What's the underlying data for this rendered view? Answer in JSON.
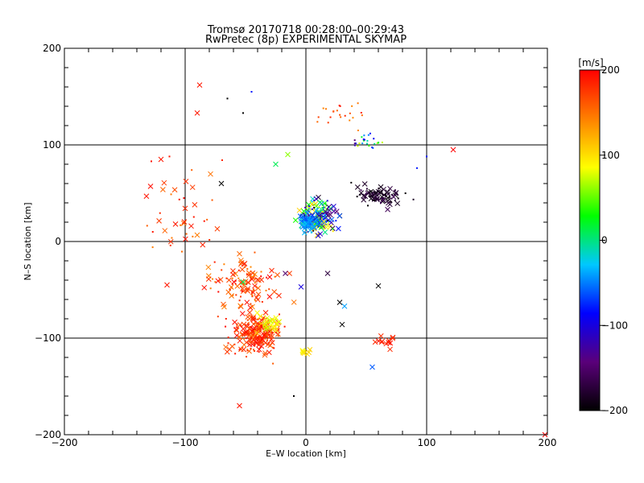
{
  "chart_data": {
    "type": "scatter",
    "title": "Tromsø 20170718 00:28:00–00:29:43",
    "subtitle": "RwPretec (8p) EXPERIMENTAL SKYMAP",
    "xlabel": "E–W location [km]",
    "ylabel": "N–S location [km]",
    "xlim": [
      -200,
      200
    ],
    "ylim": [
      -200,
      200
    ],
    "xticks": [
      -200,
      -100,
      0,
      100,
      200
    ],
    "yticks": [
      -200,
      -100,
      0,
      100,
      200
    ],
    "xtick_labels": [
      "−200",
      "−100",
      "0",
      "100",
      "200"
    ],
    "ytick_labels": [
      "−200",
      "−100",
      "0",
      "100",
      "200"
    ],
    "grid": true,
    "colorbar": {
      "label": "[m/s]",
      "range": [
        -200,
        200
      ],
      "ticks": [
        200,
        100,
        0,
        -100,
        -200
      ],
      "tick_labels": [
        "200",
        "100",
        "0",
        "−100",
        "−200"
      ],
      "colors": [
        "#000000",
        "#5a007a",
        "#0000ff",
        "#00c8ff",
        "#00ff00",
        "#ffff00",
        "#ff8000",
        "#ff0000"
      ]
    },
    "clusters": [
      {
        "center": [
          -42,
          -95
        ],
        "spread": [
          14,
          14
        ],
        "count": 220,
        "vel": [
          150,
          200
        ],
        "marker": "mixed"
      },
      {
        "center": [
          -50,
          -45
        ],
        "spread": [
          18,
          18
        ],
        "count": 110,
        "vel": [
          140,
          200
        ],
        "marker": "mixed"
      },
      {
        "center": [
          -30,
          -85
        ],
        "spread": [
          8,
          6
        ],
        "count": 25,
        "vel": [
          70,
          110
        ],
        "marker": "x"
      },
      {
        "center": [
          10,
          25
        ],
        "spread": [
          10,
          12
        ],
        "count": 200,
        "vel": [
          -200,
          120
        ],
        "marker": "mixed"
      },
      {
        "center": [
          2,
          20
        ],
        "spread": [
          5,
          6
        ],
        "count": 60,
        "vel": [
          -70,
          -20
        ],
        "marker": "x"
      },
      {
        "center": [
          60,
          47
        ],
        "spread": [
          12,
          7
        ],
        "count": 80,
        "vel": [
          -200,
          -160
        ],
        "marker": "mixed"
      },
      {
        "center": [
          30,
          130
        ],
        "spread": [
          14,
          10
        ],
        "count": 22,
        "vel": [
          140,
          200
        ],
        "marker": "dot"
      },
      {
        "center": [
          50,
          105
        ],
        "spread": [
          12,
          6
        ],
        "count": 25,
        "vel": [
          -200,
          80
        ],
        "marker": "dot"
      },
      {
        "center": [
          -100,
          30
        ],
        "spread": [
          20,
          30
        ],
        "count": 40,
        "vel": [
          140,
          200
        ],
        "marker": "mixed"
      },
      {
        "center": [
          0,
          -115
        ],
        "spread": [
          3,
          2
        ],
        "count": 8,
        "vel": [
          80,
          110
        ],
        "marker": "x"
      },
      {
        "center": [
          65,
          -100
        ],
        "spread": [
          8,
          12
        ],
        "count": 12,
        "vel": [
          170,
          200
        ],
        "marker": "x"
      }
    ],
    "points": [
      {
        "x": -88,
        "y": 162,
        "v": 190,
        "m": "x"
      },
      {
        "x": -90,
        "y": 133,
        "v": 190,
        "m": "x"
      },
      {
        "x": 122,
        "y": 95,
        "v": 200,
        "m": "x"
      },
      {
        "x": -55,
        "y": -170,
        "v": 190,
        "m": "x"
      },
      {
        "x": 55,
        "y": -130,
        "v": -60,
        "m": "x"
      },
      {
        "x": -70,
        "y": 60,
        "v": -200,
        "m": "x"
      },
      {
        "x": 60,
        "y": -46,
        "v": -200,
        "m": "x"
      },
      {
        "x": 30,
        "y": -86,
        "v": -200,
        "m": "x"
      },
      {
        "x": -115,
        "y": -45,
        "v": 190,
        "m": "x"
      },
      {
        "x": -108,
        "y": 18,
        "v": 190,
        "m": "x"
      },
      {
        "x": -95,
        "y": 16,
        "v": 190,
        "m": "x"
      },
      {
        "x": 18,
        "y": -33,
        "v": -170,
        "m": "x"
      },
      {
        "x": -17,
        "y": -33,
        "v": -150,
        "m": "x"
      },
      {
        "x": -4,
        "y": -47,
        "v": -100,
        "m": "x"
      },
      {
        "x": 32,
        "y": -67,
        "v": -40,
        "m": "x"
      },
      {
        "x": 28,
        "y": -63,
        "v": -200,
        "m": "x"
      },
      {
        "x": -52,
        "y": -42,
        "v": 10,
        "m": "x"
      },
      {
        "x": -25,
        "y": 80,
        "v": 10,
        "m": "x"
      },
      {
        "x": -15,
        "y": 90,
        "v": 60,
        "m": "x"
      },
      {
        "x": -65,
        "y": 148,
        "v": -200,
        "m": "dot"
      },
      {
        "x": -52,
        "y": 133,
        "v": -200,
        "m": "dot"
      },
      {
        "x": -45,
        "y": 155,
        "v": -80,
        "m": "dot"
      },
      {
        "x": -120,
        "y": 85,
        "v": 190,
        "m": "x"
      },
      {
        "x": -128,
        "y": 83,
        "v": 190,
        "m": "dot"
      },
      {
        "x": -113,
        "y": 88,
        "v": 190,
        "m": "dot"
      },
      {
        "x": -10,
        "y": -160,
        "v": -200,
        "m": "dot"
      },
      {
        "x": 198,
        "y": -200,
        "v": 200,
        "m": "x"
      },
      {
        "x": 100,
        "y": 88,
        "v": -80,
        "m": "dot"
      },
      {
        "x": 92,
        "y": 76,
        "v": -80,
        "m": "dot"
      }
    ]
  }
}
